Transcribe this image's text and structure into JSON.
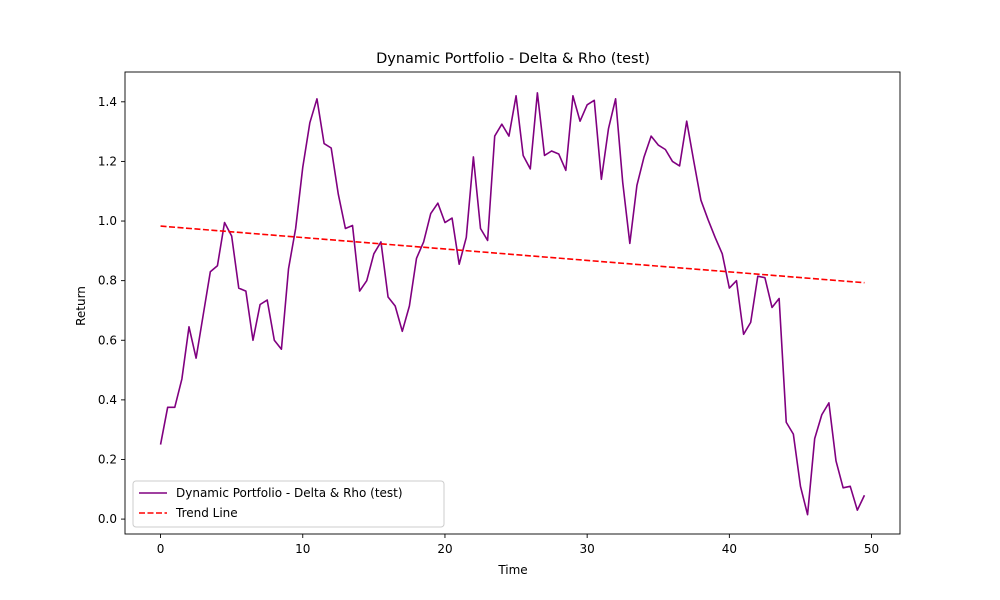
{
  "chart_data": {
    "type": "line",
    "title": "Dynamic Portfolio - Delta & Rho (test)",
    "xlabel": "Time",
    "ylabel": "Return",
    "xlim": [
      -2.5,
      52
    ],
    "ylim": [
      -0.05,
      1.5
    ],
    "xticks": [
      0,
      10,
      20,
      30,
      40,
      50
    ],
    "yticks": [
      0.0,
      0.2,
      0.4,
      0.6,
      0.8,
      1.0,
      1.2,
      1.4
    ],
    "grid": false,
    "legend_position": "lower left",
    "series": [
      {
        "name": "Dynamic Portfolio - Delta & Rho (test)",
        "color": "#800080",
        "style": "solid",
        "x": [
          0,
          0.5,
          1,
          1.5,
          2,
          2.5,
          3,
          3.5,
          4,
          4.5,
          5,
          5.5,
          6,
          6.5,
          7,
          7.5,
          8,
          8.5,
          9,
          9.5,
          10,
          10.5,
          11,
          11.5,
          12,
          12.5,
          13,
          13.5,
          14,
          14.5,
          15,
          15.5,
          16,
          16.5,
          17,
          17.5,
          18,
          18.5,
          19,
          19.5,
          20,
          20.5,
          21,
          21.5,
          22,
          22.5,
          23,
          23.5,
          24,
          24.5,
          25,
          25.5,
          26,
          26.5,
          27,
          27.5,
          28,
          28.5,
          29,
          29.5,
          30,
          30.5,
          31,
          31.5,
          32,
          32.5,
          33,
          33.5,
          34,
          34.5,
          35,
          35.5,
          36,
          36.5,
          37,
          37.5,
          38,
          38.5,
          39,
          39.5,
          40,
          40.5,
          41,
          41.5,
          42,
          42.5,
          43,
          43.5,
          44,
          44.5,
          45,
          45.5,
          46,
          46.5,
          47,
          47.5,
          48,
          48.5,
          49,
          49.5
        ],
        "values": [
          0.25,
          0.375,
          0.375,
          0.47,
          0.645,
          0.54,
          0.685,
          0.83,
          0.85,
          0.995,
          0.95,
          0.775,
          0.765,
          0.6,
          0.72,
          0.735,
          0.6,
          0.57,
          0.84,
          0.975,
          1.18,
          1.33,
          1.41,
          1.26,
          1.245,
          1.09,
          0.975,
          0.985,
          0.765,
          0.8,
          0.89,
          0.93,
          0.745,
          0.715,
          0.63,
          0.715,
          0.875,
          0.93,
          1.025,
          1.06,
          0.995,
          1.01,
          0.855,
          0.945,
          1.215,
          0.975,
          0.935,
          1.285,
          1.325,
          1.285,
          1.42,
          1.22,
          1.175,
          1.43,
          1.22,
          1.235,
          1.225,
          1.17,
          1.42,
          1.335,
          1.39,
          1.405,
          1.14,
          1.31,
          1.41,
          1.13,
          0.925,
          1.12,
          1.215,
          1.285,
          1.255,
          1.24,
          1.2,
          1.185,
          1.335,
          1.2,
          1.07,
          1.005,
          0.945,
          0.89,
          0.775,
          0.8,
          0.62,
          0.66,
          0.815,
          0.81,
          0.71,
          0.74,
          0.325,
          0.285,
          0.11,
          0.015,
          0.27,
          0.35,
          0.39,
          0.195,
          0.105,
          0.11,
          0.03,
          0.08
        ]
      },
      {
        "name": "Trend Line",
        "color": "#ff0000",
        "style": "dashed",
        "x": [
          0,
          49.5
        ],
        "values": [
          0.983,
          0.793
        ]
      }
    ]
  }
}
